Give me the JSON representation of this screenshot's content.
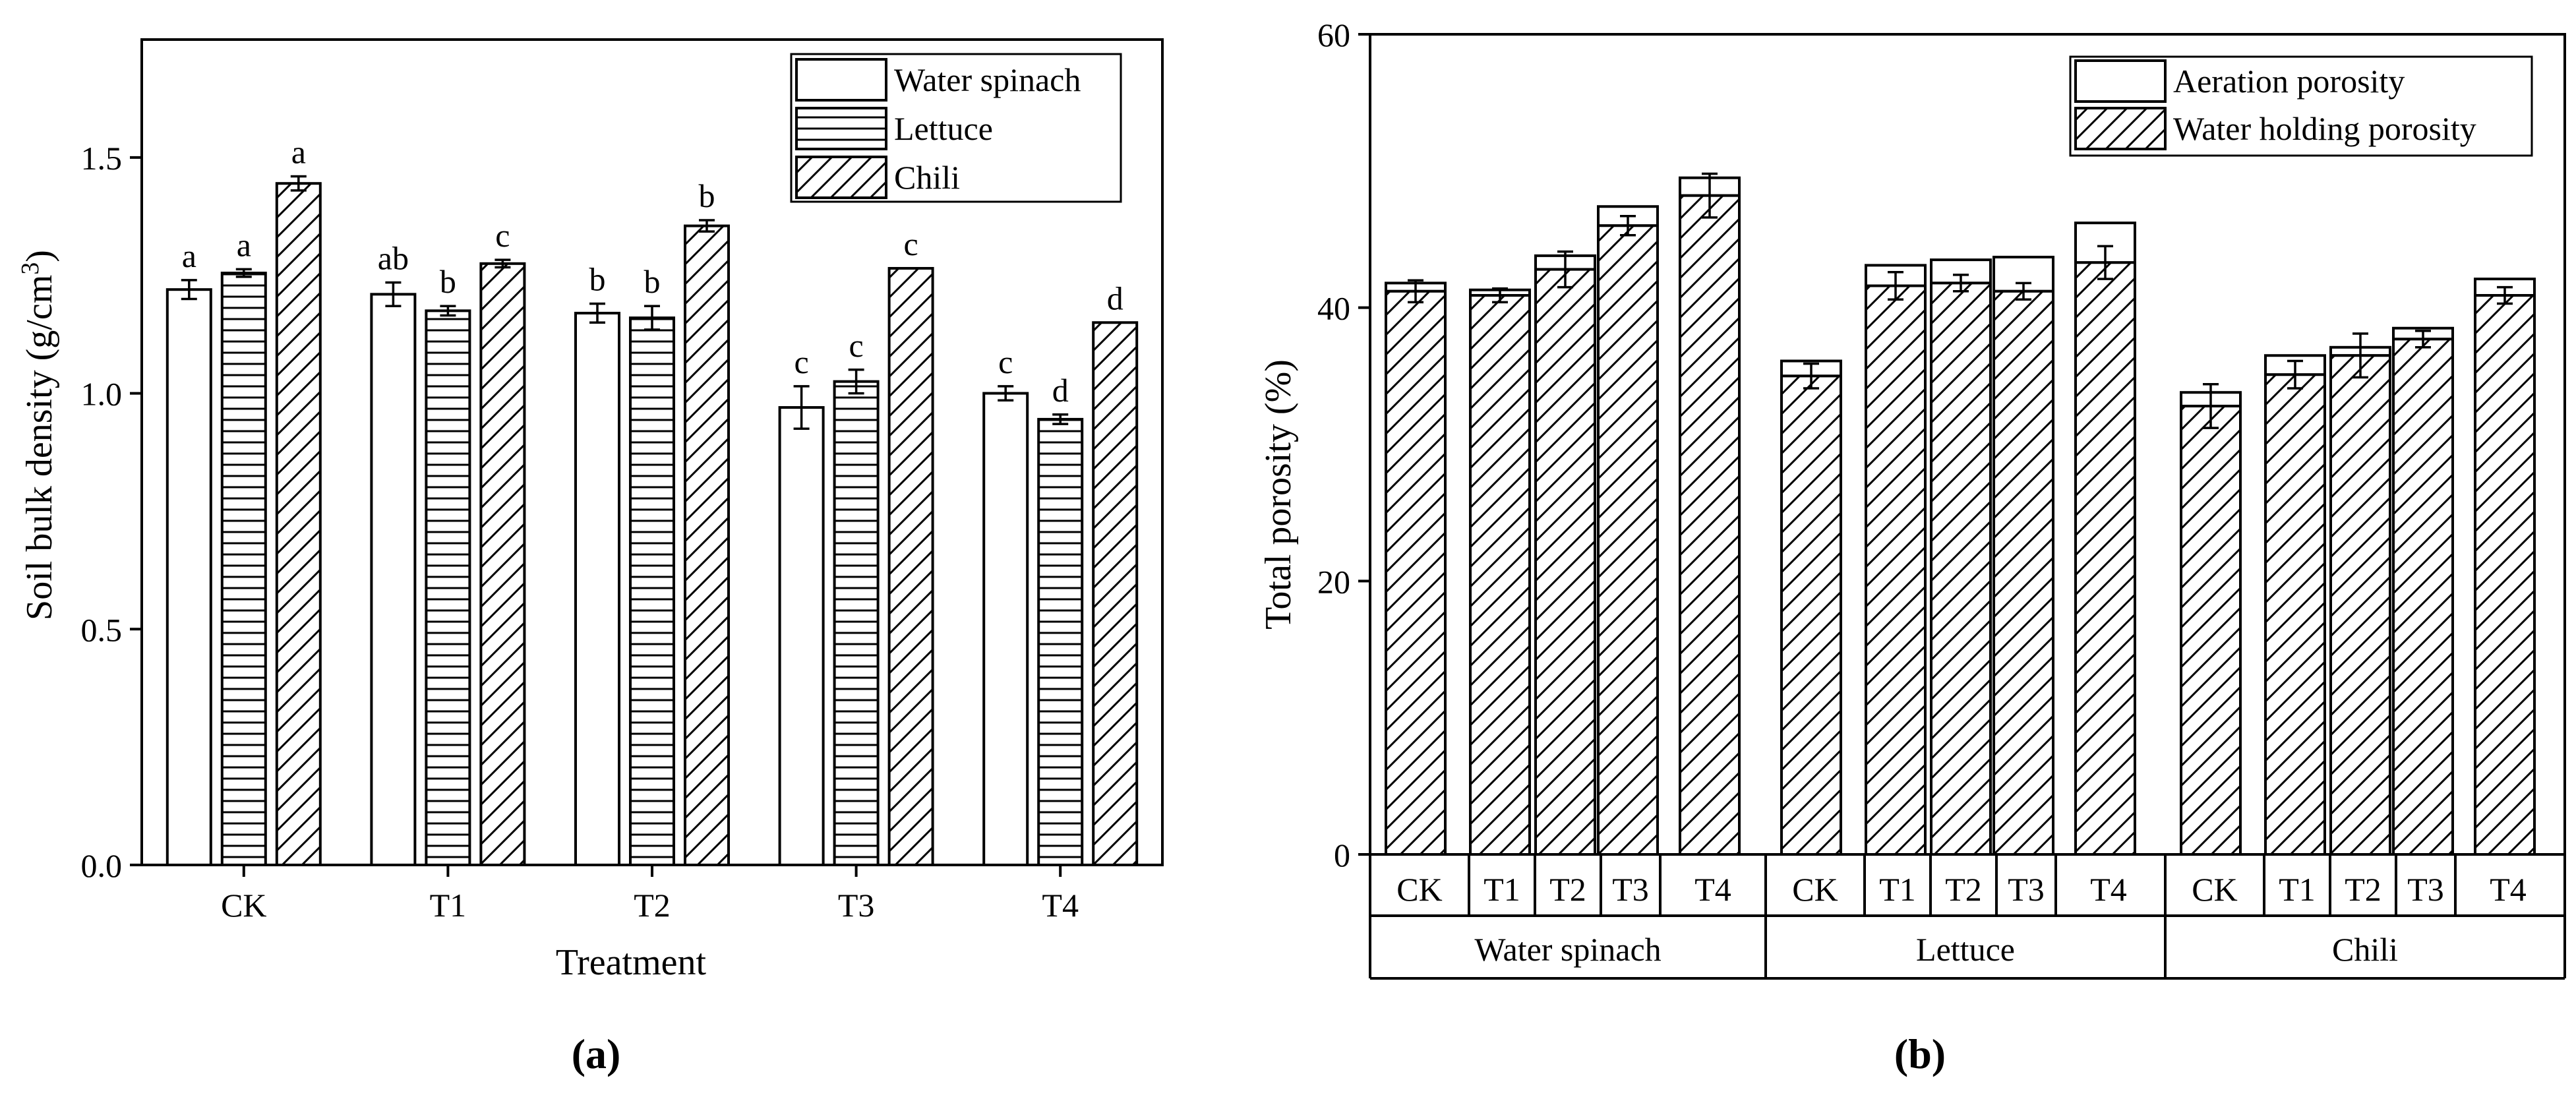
{
  "panel_labels": {
    "a": "(a)",
    "b": "(b)"
  },
  "chart_data": [
    {
      "type": "bar",
      "xlabel": "Treatment",
      "ylabel": "Soil bulk density (g/cm",
      "ylabel_sup": "3",
      "ylabel_close": ")",
      "ylim": [
        0,
        1.75
      ],
      "yticks": [
        "0.0",
        "0.5",
        "1.0",
        "1.5"
      ],
      "categories": [
        "CK",
        "T1",
        "T2",
        "T3",
        "T4"
      ],
      "legend_position": "top-right",
      "series": [
        {
          "name": "Water spinach",
          "pattern": "blank",
          "values": [
            1.22,
            1.21,
            1.17,
            0.97,
            1.0
          ],
          "errors": [
            0.02,
            0.025,
            0.02,
            0.045,
            0.015
          ],
          "letters": [
            "a",
            "ab",
            "b",
            "c",
            "c"
          ]
        },
        {
          "name": "Lettuce",
          "pattern": "horizontal",
          "values": [
            1.255,
            1.175,
            1.16,
            1.025,
            0.945
          ],
          "errors": [
            0.008,
            0.01,
            0.025,
            0.025,
            0.01
          ],
          "letters": [
            "a",
            "b",
            "b",
            "c",
            "d"
          ]
        },
        {
          "name": "Chili",
          "pattern": "diagonal",
          "values": [
            1.445,
            1.275,
            1.355,
            1.265,
            1.15
          ],
          "errors": [
            0.015,
            0.008,
            0.012,
            0.0,
            0.0
          ],
          "letters": [
            "a",
            "c",
            "b",
            "c",
            "d"
          ]
        }
      ]
    },
    {
      "type": "bar",
      "stacked": true,
      "ylabel": "Total porosity (%)",
      "ylim": [
        0,
        60
      ],
      "yticks": [
        "0",
        "20",
        "40",
        "60"
      ],
      "groups": [
        "Water spinach",
        "Lettuce",
        "Chili"
      ],
      "categories": [
        "CK",
        "T1",
        "T2",
        "T3",
        "T4"
      ],
      "legend_position": "top-right",
      "series": [
        {
          "name": "Aeration porosity",
          "pattern": "blank"
        },
        {
          "name": "Water holding porosity",
          "pattern": "diagonal"
        }
      ],
      "water_holding": [
        [
          41.2,
          40.9,
          42.8,
          46.0,
          48.2
        ],
        [
          35.0,
          41.6,
          41.8,
          41.2,
          43.3
        ],
        [
          32.8,
          35.1,
          36.5,
          37.7,
          40.9
        ]
      ],
      "water_holding_errors": [
        [
          0.8,
          0.5,
          1.3,
          0.7,
          1.6
        ],
        [
          0.9,
          1.0,
          0.6,
          0.6,
          1.2
        ],
        [
          1.6,
          1.0,
          1.6,
          0.6,
          0.6
        ]
      ],
      "total": [
        [
          41.8,
          41.3,
          43.8,
          47.4,
          49.5
        ],
        [
          36.1,
          43.1,
          43.5,
          43.7,
          46.2
        ],
        [
          33.8,
          36.5,
          37.1,
          38.5,
          42.1
        ]
      ]
    }
  ]
}
